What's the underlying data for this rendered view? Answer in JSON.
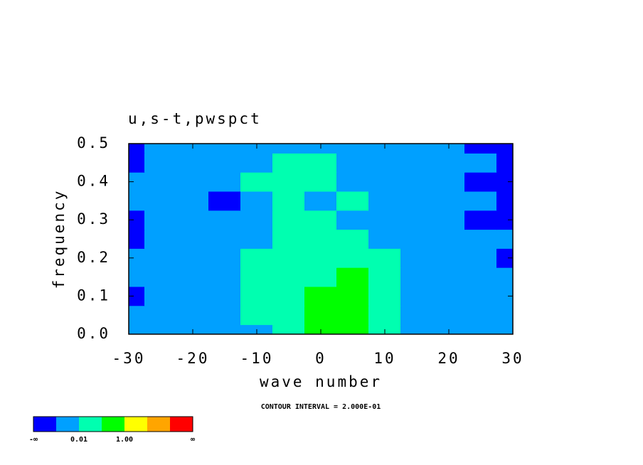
{
  "chart_data": {
    "type": "contourf",
    "title": "u,s-t,pwspct",
    "x_label": "wave number",
    "y_label": "frequency",
    "note": "CONTOUR INTERVAL = 2.000E-01",
    "x": [
      -30,
      -25,
      -20,
      -15,
      -10,
      -5,
      0,
      5,
      10,
      15,
      20,
      25,
      30
    ],
    "y": [
      0,
      0.05,
      0.1,
      0.15,
      0.2,
      0.25,
      0.3,
      0.35,
      0.4,
      0.45,
      0.5
    ],
    "z": [
      [
        1,
        1,
        1,
        1,
        1,
        2,
        3,
        3,
        2,
        1,
        1,
        1,
        1
      ],
      [
        1,
        1,
        1,
        1,
        2,
        2,
        3,
        3,
        2,
        1,
        1,
        1,
        1
      ],
      [
        0,
        1,
        1,
        1,
        2,
        2,
        3,
        3,
        2,
        1,
        1,
        1,
        1
      ],
      [
        1,
        1,
        1,
        1,
        2,
        2,
        2,
        3,
        2,
        1,
        1,
        1,
        1
      ],
      [
        1,
        1,
        1,
        1,
        2,
        2,
        2,
        2,
        2,
        1,
        1,
        1,
        0
      ],
      [
        0,
        1,
        1,
        1,
        1,
        2,
        2,
        2,
        1,
        1,
        1,
        1,
        1
      ],
      [
        0,
        1,
        1,
        1,
        1,
        2,
        2,
        1,
        1,
        1,
        1,
        0,
        0
      ],
      [
        1,
        1,
        1,
        0,
        1,
        2,
        1,
        2,
        1,
        1,
        1,
        1,
        0
      ],
      [
        1,
        1,
        1,
        1,
        2,
        2,
        2,
        1,
        1,
        1,
        1,
        0,
        0
      ],
      [
        0,
        1,
        1,
        1,
        1,
        2,
        2,
        1,
        1,
        1,
        1,
        1,
        0
      ],
      [
        0,
        1,
        1,
        1,
        1,
        1,
        1,
        1,
        1,
        1,
        1,
        0,
        0
      ]
    ],
    "xlim": [
      -30,
      30
    ],
    "ylim": [
      0,
      0.5
    ],
    "xticks": [
      -30,
      -20,
      -10,
      0,
      10,
      20,
      30
    ],
    "yticks": [
      {
        "value": 0,
        "label": "0.0"
      },
      {
        "value": 0.1,
        "label": "0.1"
      },
      {
        "value": 0.2,
        "label": "0.2"
      },
      {
        "value": 0.3,
        "label": "0.3"
      },
      {
        "value": 0.4,
        "label": "0.4"
      },
      {
        "value": 0.5,
        "label": "0.5"
      }
    ],
    "colorbar": {
      "colors": [
        "#0000ff",
        "#00a0ff",
        "#00ffb0",
        "#00ff00",
        "#ffff00",
        "#ffa500",
        "#ff0000"
      ],
      "labels": [
        "-∞",
        null,
        "0.01",
        null,
        "1.00",
        null,
        null,
        "∞"
      ]
    }
  }
}
